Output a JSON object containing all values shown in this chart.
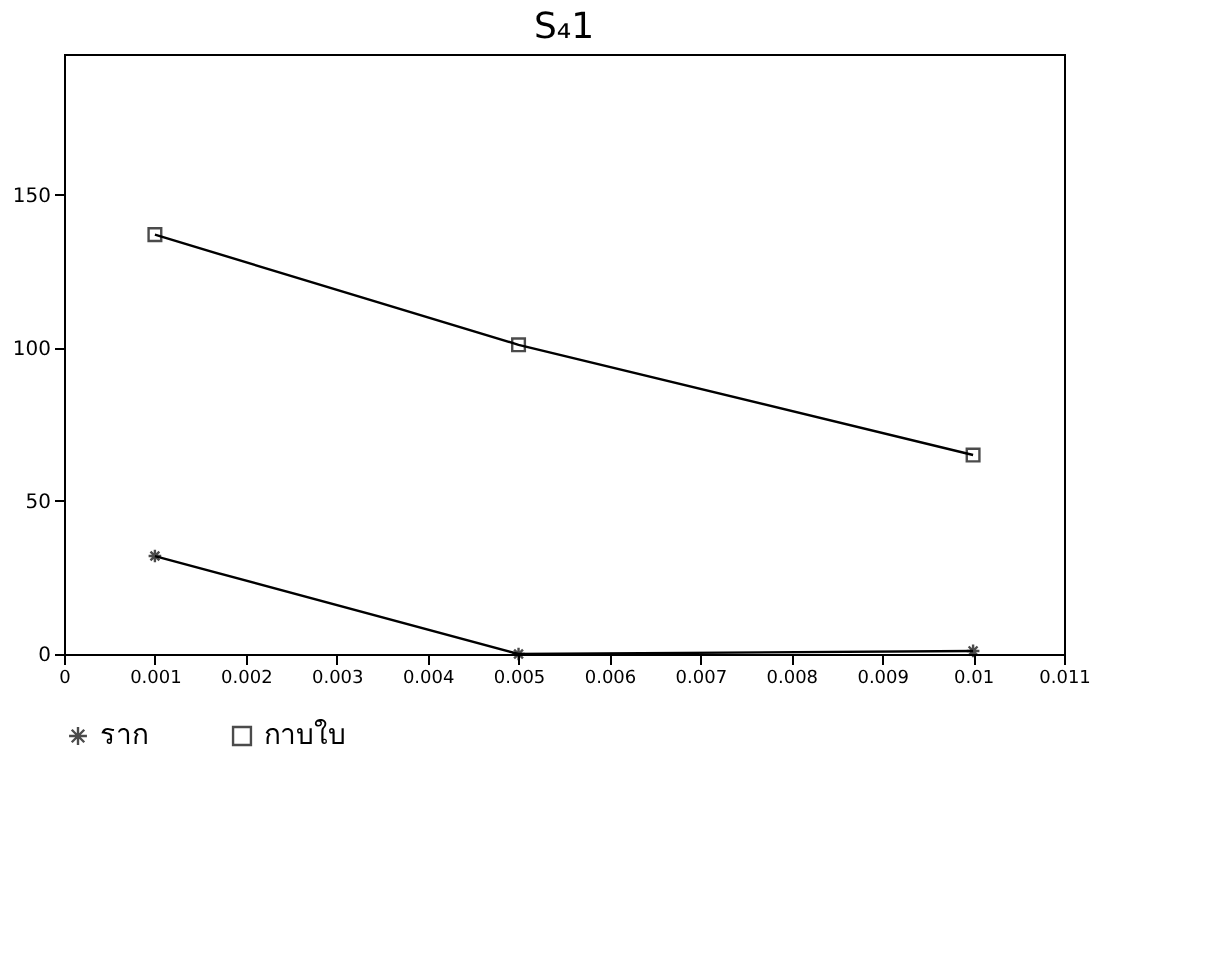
{
  "chart_data": {
    "type": "line",
    "title": "S₄1",
    "x": [
      0.001,
      0.005,
      0.01
    ],
    "series": [
      {
        "name": "ราก",
        "color": "#000000",
        "marker": "cross",
        "values": [
          32,
          0,
          1
        ]
      },
      {
        "name": "กาบใบ",
        "color": "#000000",
        "marker": "square",
        "values": [
          137,
          101,
          65
        ]
      }
    ],
    "xlim": [
      0,
      0.011
    ],
    "xticks": [
      0,
      0.001,
      0.002,
      0.003,
      0.004,
      0.005,
      0.006,
      0.007,
      0.008,
      0.009,
      0.01,
      0.011
    ],
    "ylim": [
      0,
      196
    ],
    "yticks": [
      0,
      50,
      100,
      150
    ],
    "grid": false,
    "legend": "bottom",
    "line_style": "solid"
  }
}
